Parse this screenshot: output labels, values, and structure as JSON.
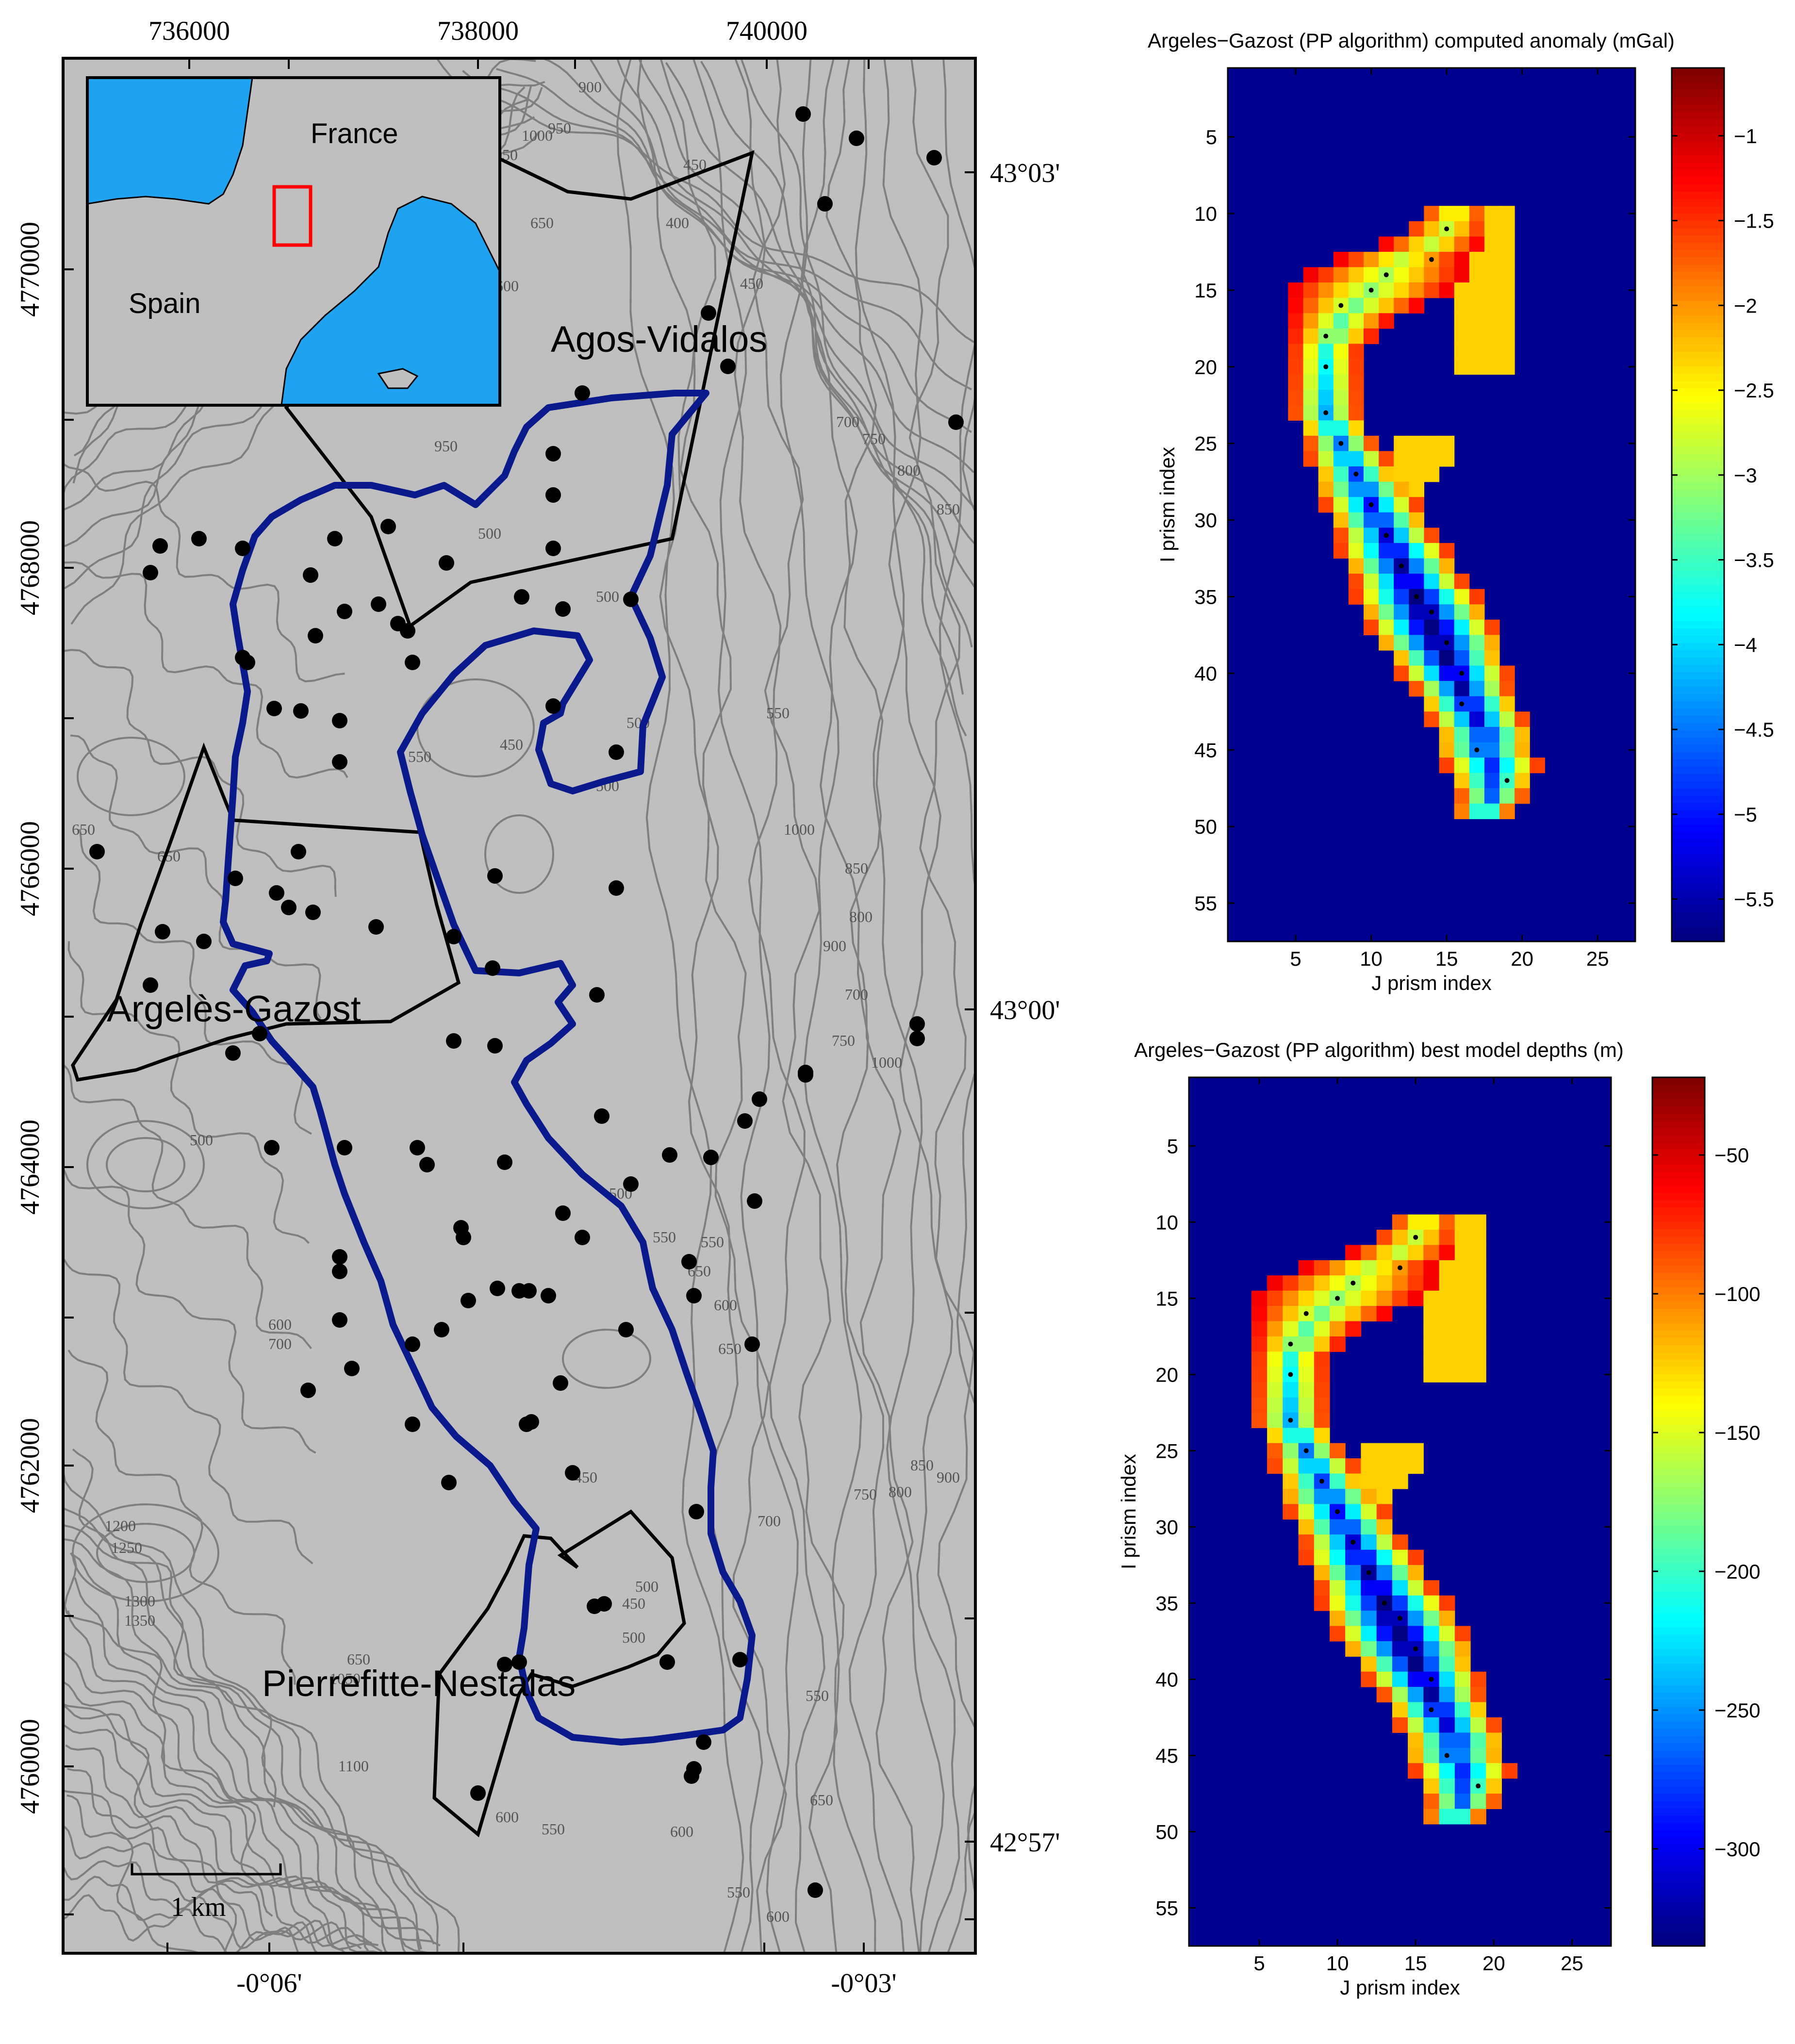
{
  "chart_data": [
    {
      "type": "map",
      "x_ticks": [
        "736000",
        "738000",
        "740000"
      ],
      "y_ticks": [
        "4770000",
        "4768000",
        "4766000",
        "4764000",
        "4762000",
        "4760000"
      ],
      "lon_ticks": [
        "-0°06'",
        "-0°03'"
      ],
      "lat_ticks": [
        "43°03'",
        "43°00'",
        "42°57'"
      ],
      "towns": [
        "Agos-Vidalos",
        "Argelès-Gazost",
        "Pierrefitte-Nestalas"
      ],
      "inset": {
        "labels": [
          "France",
          "Spain"
        ],
        "sea_color": "#1fa2f0",
        "land_color": "#bfbfbf",
        "box_color": "#ff0000"
      },
      "contour_labels": [
        "900",
        "950",
        "1000",
        "1050",
        "450",
        "400",
        "650",
        "600",
        "450",
        "700",
        "750",
        "800",
        "850",
        "900",
        "950",
        "500",
        "500",
        "550",
        "500",
        "500",
        "550",
        "650",
        "450",
        "650",
        "1000",
        "900",
        "850",
        "800",
        "700",
        "750",
        "500",
        "500",
        "550",
        "650",
        "600",
        "650",
        "550",
        "700",
        "600",
        "450",
        "750",
        "800",
        "850",
        "900",
        "700",
        "1200",
        "1250",
        "1300",
        "1350",
        "500",
        "550",
        "600",
        "550",
        "600",
        "650",
        "600",
        "650",
        "1050",
        "1100",
        "550",
        "450",
        "500",
        "1000"
      ],
      "scale_bar": "1 km",
      "colors": {
        "map_bg": "#bfbfbf",
        "contour": "#7f7f7f",
        "basin_outline": "#0a1a8c",
        "boundary": "#000000",
        "station": "#000000"
      }
    },
    {
      "type": "heatmap",
      "title": "Argeles−Gazost (PP algorithm) computed anomaly (mGal)",
      "xlabel": "J prism index",
      "ylabel": "I prism index",
      "x_ticks": [
        5,
        10,
        15,
        20,
        25
      ],
      "y_ticks": [
        5,
        10,
        15,
        20,
        25,
        30,
        35,
        40,
        45,
        50,
        55
      ],
      "xlim": [
        0.5,
        27.5
      ],
      "ylim": [
        0.5,
        57.5
      ],
      "colorbar": {
        "min": -5.75,
        "max": -0.6,
        "ticks": [
          -1,
          -1.5,
          -2,
          -2.5,
          -3,
          -3.5,
          -4,
          -4.5,
          -5,
          -5.5
        ],
        "tick_labels": [
          "−1",
          "−1.5",
          "−2",
          "−2.5",
          "−3",
          "−3.5",
          "−4",
          "−4.5",
          "−5",
          "−5.5"
        ]
      },
      "colormap": "jet"
    },
    {
      "type": "heatmap",
      "title": "Argeles−Gazost (PP algorithm) best model depths (m)",
      "xlabel": "J prism index",
      "ylabel": "I prism index",
      "x_ticks": [
        5,
        10,
        15,
        20,
        25
      ],
      "y_ticks": [
        5,
        10,
        15,
        20,
        25,
        30,
        35,
        40,
        45,
        50,
        55
      ],
      "xlim": [
        0.5,
        27.5
      ],
      "ylim": [
        0.5,
        57.5
      ],
      "colorbar": {
        "min": -335,
        "max": -22,
        "ticks": [
          -50,
          -100,
          -150,
          -200,
          -250,
          -300
        ],
        "tick_labels": [
          "−50",
          "−100",
          "−150",
          "−200",
          "−250",
          "−300"
        ]
      },
      "colormap": "jet"
    }
  ]
}
